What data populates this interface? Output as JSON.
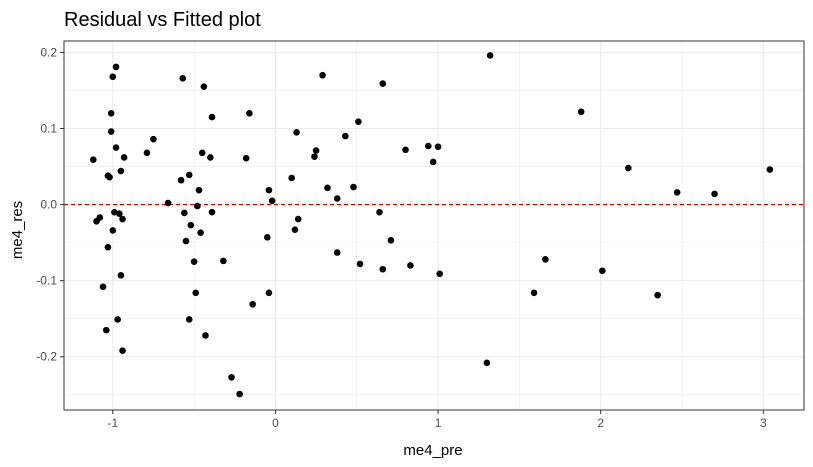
{
  "chart_data": {
    "type": "scatter",
    "title": "Residual vs Fitted plot",
    "xlabel": "me4_pre",
    "ylabel": "me4_res",
    "xlim": [
      -1.3,
      3.25
    ],
    "ylim": [
      -0.27,
      0.215
    ],
    "x_ticks": [
      -1,
      0,
      1,
      2,
      3
    ],
    "x_tick_labels": [
      "-1",
      "0",
      "1",
      "2",
      "3"
    ],
    "y_ticks": [
      -0.2,
      -0.1,
      0.0,
      0.1,
      0.2
    ],
    "y_tick_labels": [
      "-0.2",
      "-0.1",
      "0.0",
      "0.1",
      "0.2"
    ],
    "grid": true,
    "reference_line": {
      "y": 0,
      "style": "dashed",
      "color": "#cc0000"
    },
    "colors": {
      "point": "#000000",
      "grid": "#ebebeb",
      "panel_border": "#333333",
      "tick_label": "#4d4d4d"
    },
    "points": [
      [
        -1.12,
        0.059
      ],
      [
        -1.1,
        -0.022
      ],
      [
        -1.08,
        -0.017
      ],
      [
        -1.06,
        -0.108
      ],
      [
        -1.04,
        -0.165
      ],
      [
        -1.03,
        0.038
      ],
      [
        -1.03,
        -0.056
      ],
      [
        -1.02,
        0.036
      ],
      [
        -1.01,
        0.12
      ],
      [
        -1.01,
        0.096
      ],
      [
        -1.0,
        0.168
      ],
      [
        -1.0,
        -0.034
      ],
      [
        -0.99,
        -0.01
      ],
      [
        -0.98,
        0.075
      ],
      [
        -0.98,
        0.181
      ],
      [
        -0.97,
        -0.151
      ],
      [
        -0.96,
        -0.012
      ],
      [
        -0.95,
        -0.093
      ],
      [
        -0.95,
        0.044
      ],
      [
        -0.94,
        -0.019
      ],
      [
        -0.94,
        -0.192
      ],
      [
        -0.93,
        0.062
      ],
      [
        -0.79,
        0.068
      ],
      [
        -0.75,
        0.086
      ],
      [
        -0.66,
        0.002
      ],
      [
        -0.58,
        0.032
      ],
      [
        -0.57,
        0.166
      ],
      [
        -0.56,
        -0.011
      ],
      [
        -0.55,
        -0.048
      ],
      [
        -0.53,
        -0.151
      ],
      [
        -0.53,
        0.039
      ],
      [
        -0.52,
        -0.027
      ],
      [
        -0.5,
        -0.075
      ],
      [
        -0.49,
        -0.116
      ],
      [
        -0.48,
        -0.002
      ],
      [
        -0.47,
        0.019
      ],
      [
        -0.46,
        -0.037
      ],
      [
        -0.45,
        0.068
      ],
      [
        -0.44,
        0.155
      ],
      [
        -0.43,
        -0.172
      ],
      [
        -0.4,
        0.062
      ],
      [
        -0.39,
        -0.01
      ],
      [
        -0.39,
        0.115
      ],
      [
        -0.32,
        -0.074
      ],
      [
        -0.27,
        -0.227
      ],
      [
        -0.22,
        -0.249
      ],
      [
        -0.18,
        0.061
      ],
      [
        -0.16,
        0.12
      ],
      [
        -0.14,
        -0.131
      ],
      [
        -0.05,
        -0.043
      ],
      [
        -0.04,
        -0.116
      ],
      [
        -0.04,
        0.019
      ],
      [
        -0.02,
        0.005
      ],
      [
        0.1,
        0.035
      ],
      [
        0.12,
        -0.033
      ],
      [
        0.13,
        0.095
      ],
      [
        0.14,
        -0.019
      ],
      [
        0.24,
        0.063
      ],
      [
        0.25,
        0.071
      ],
      [
        0.29,
        0.17
      ],
      [
        0.32,
        0.022
      ],
      [
        0.38,
        0.008
      ],
      [
        0.38,
        -0.063
      ],
      [
        0.43,
        0.09
      ],
      [
        0.48,
        0.023
      ],
      [
        0.51,
        0.109
      ],
      [
        0.52,
        -0.078
      ],
      [
        0.64,
        -0.01
      ],
      [
        0.66,
        0.159
      ],
      [
        0.66,
        -0.085
      ],
      [
        0.71,
        -0.047
      ],
      [
        0.8,
        0.072
      ],
      [
        0.83,
        -0.08
      ],
      [
        0.94,
        0.077
      ],
      [
        0.97,
        0.056
      ],
      [
        1.0,
        0.076
      ],
      [
        1.01,
        -0.091
      ],
      [
        1.3,
        -0.208
      ],
      [
        1.32,
        0.196
      ],
      [
        1.59,
        -0.116
      ],
      [
        1.66,
        -0.072
      ],
      [
        1.88,
        0.122
      ],
      [
        2.01,
        -0.087
      ],
      [
        2.17,
        0.048
      ],
      [
        2.35,
        -0.119
      ],
      [
        2.47,
        0.016
      ],
      [
        2.7,
        0.014
      ],
      [
        3.04,
        0.046
      ]
    ]
  }
}
